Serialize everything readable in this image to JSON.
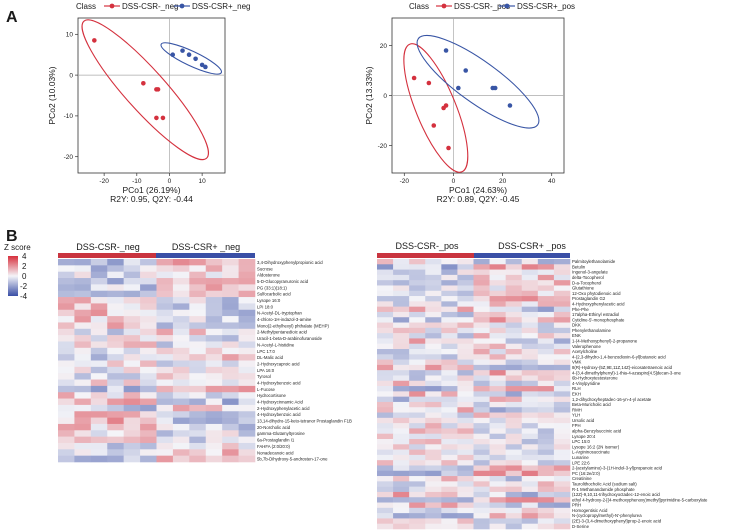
{
  "panels": {
    "a_label": "A",
    "b_label": "B"
  },
  "chart_data": [
    {
      "type": "scatter",
      "legend_title": "Class",
      "series": [
        {
          "name": "DSS-CSR-_neg",
          "color": "#d4313e",
          "points": [
            [
              -23,
              8.5
            ],
            [
              -8,
              -2
            ],
            [
              -4,
              -3.5
            ],
            [
              -3.5,
              -3.5
            ],
            [
              -4,
              -10.5
            ],
            [
              -2,
              -10.5
            ]
          ]
        },
        {
          "name": "DSS-CSR+_neg",
          "color": "#3855a5",
          "points": [
            [
              1,
              5
            ],
            [
              4,
              6
            ],
            [
              6,
              5
            ],
            [
              8,
              4
            ],
            [
              10,
              2.5
            ],
            [
              11,
              2
            ]
          ]
        }
      ],
      "xlabel": "PCo1 (26.19%)",
      "ylabel": "PCo2 (10.03%)",
      "xlim": [
        -28,
        17
      ],
      "ylim": [
        -24,
        14
      ],
      "xticks": [
        -20,
        -10,
        0,
        10
      ],
      "yticks": [
        -20,
        -10,
        0,
        10
      ],
      "stats": "R2Y: 0.95, Q2Y: -0.44",
      "ellipses": true,
      "legend_position": "top"
    },
    {
      "type": "scatter",
      "legend_title": "Class",
      "series": [
        {
          "name": "DSS-CSR-_pos",
          "color": "#d4313e",
          "points": [
            [
              -16,
              7
            ],
            [
              -10,
              5
            ],
            [
              -8,
              -12
            ],
            [
              -4,
              -5
            ],
            [
              -3,
              -4
            ],
            [
              -2,
              -21
            ]
          ]
        },
        {
          "name": "DSS-CSR+_pos",
          "color": "#3855a5",
          "points": [
            [
              -3,
              18
            ],
            [
              2,
              3
            ],
            [
              5,
              10
            ],
            [
              16,
              3
            ],
            [
              17,
              3
            ],
            [
              23,
              -4
            ]
          ]
        }
      ],
      "xlabel": "PCo1 (24.63%)",
      "ylabel": "PCo2 (13.33%)",
      "xlim": [
        -25,
        45
      ],
      "ylim": [
        -31,
        31
      ],
      "xticks": [
        -20,
        0,
        20,
        40
      ],
      "yticks": [
        -20,
        0,
        20
      ],
      "stats": "R2Y: 0.89, Q2Y: -0.45",
      "ellipses": true,
      "legend_position": "top"
    },
    {
      "type": "heatmap",
      "color_scale": {
        "title": "Z score",
        "ticks": [
          "4",
          "2",
          "0",
          "-2",
          "-4"
        ],
        "colors": [
          "#d7303d",
          "#f4f4f8",
          "#3a4fa6"
        ]
      },
      "groups": [
        "DSS-CSR-_neg",
        "DSS-CSR+ _neg"
      ],
      "rows": [
        "3,4-Dihydroxyphenylpropionic acid",
        "Sucrose",
        "Aldosterone",
        "5-D-Glucopyranuronic acid",
        "PG (33:1)(18:1)",
        "Sulfocarbolic acid",
        "Lysope 16:0",
        "LPI 18:0",
        "N-Acetyl-DL-tryptophan",
        "4-chloro-1H-indazol-3-amine",
        "Mono(2-ethylhexyl) phthalate (MEHP)",
        "2-Methylpentanedioic acid",
        "Uracil-1-beta-D-arabinofuranoside",
        "N-Acetyl-L-histidine",
        "LPC 17:0",
        "DL-Malic acid",
        "2-Hydroxycaproic acid",
        "LPA 16:0",
        "Tyrosol",
        "4-Hydroxybenzoic acid",
        "L-Fucose",
        "Hydrocortisone",
        "4-Hydroxycinnamic Acid",
        "2-Hydroxyphenylacetic acid",
        "4-Hydroxybenzoic acid",
        "13,14-dihydro-15-keto-tetranor Prostaglandin F1B",
        "20-Norcholic acid",
        "gamma-Glutamyltyrosine",
        "6a-Prostaglandin I1",
        "FAHFA (2:0/20:0)",
        "Nonadecanoic acid",
        "5b,7b-Dihydroxy-5-androsten-17-one"
      ]
    },
    {
      "type": "heatmap",
      "groups": [
        "DSS-CSR-_pos",
        "DSS-CSR+ _pos"
      ],
      "rows": [
        "Palmitoylethanolamide",
        "Betulin",
        "Ingenol-3-angelate",
        "delta-Tocopherol",
        "D-a-Tocopherol",
        "Glutathione",
        "12-Oxo phytodienoic acid",
        "Prostaglandin G2",
        "4-Hydroxyphenylacetic acid",
        "Phe-Phe",
        "17alpha-Ethinyl estradiol",
        "Cytidine-5'-monophosphate",
        "DKK",
        "Phenylethanolamine",
        "ENK",
        "1-(4-Methoxyphenyl)-2-propanone",
        "Valerophenone",
        "Acetylcholine",
        "4-(2,3-dihydro-1,4-benzodioxin-6-yl)butanoic acid",
        "VMK",
        "8(R)-Hydroxy-(5Z,9E,11Z,14Z)-eicosatetraenoic acid",
        "4-(3,4-dimethylphenyl)-1-thia-4-azaspiro[4.5]decan-3-one",
        "6b-Hydroxytestosterone",
        "4-Vinylpyridine",
        "RLH",
        "EKH",
        "1,2-dihydroxyheptadec-16-yn-4-yl acetate",
        "Beta-Muricholic acid",
        "RMH",
        "YLH",
        "Ursolic acid",
        "FPH",
        "alpha-Benzylsuccinic acid",
        "Lysope 20:4",
        "LPC 15:0",
        "Lysope 16:2 (2N Isomer)",
        "L-Argininosuccinate",
        "Lunarine",
        "LPE 22:6",
        "2-(acetylamino)-3-(1H-indol-3-yl)propanoic acid",
        "PC (16:2e/2:0)",
        "Creatinine",
        "Taurolithocholic Acid (sodium salt)",
        "R-1 Methanandamide phosphate",
        "(12Z)-9,10,11-trihydroxyoctadec-12-enoic acid",
        "ethyl 4-hydroxy-2-[(4-methoxyphenoxy)methyl]pyrimidine-5-carboxylate",
        "PRH",
        "Homogentisic Acid",
        "N-(cyclopropylmethyl)-N'-phenylurea",
        "(2E)-3-(3,4-dimethoxyphenyl)prop-2-enoic acid",
        "D-Serine"
      ]
    }
  ]
}
